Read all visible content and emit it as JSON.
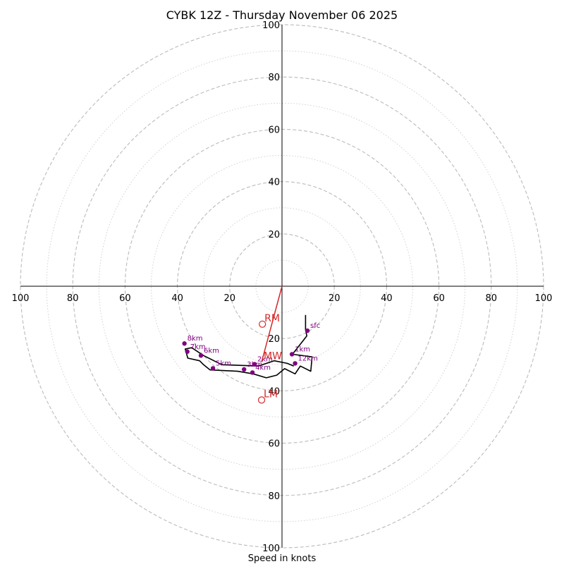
{
  "chart_data": {
    "type": "hodograph",
    "title": "CYBK 12Z - Thursday November 06 2025",
    "xlabel": "Speed in knots",
    "units": "knots",
    "max_speed": 100,
    "ring_labels": [
      "20",
      "40",
      "60",
      "80",
      "100"
    ],
    "grid": true,
    "colors": {
      "ring_major": "#bbbbbb",
      "ring_minor": "#cccccc",
      "axis": "#000000",
      "profile": "#000000",
      "height_marker": "#800080",
      "storm_motion": "#d62728"
    },
    "profile": {
      "u": [
        9,
        9,
        9.5,
        4,
        11.5,
        11,
        7,
        5,
        1,
        -2,
        -6,
        -11,
        -17,
        -27.5,
        -30,
        -31.5,
        -36,
        -37,
        -34.5,
        -30,
        -23,
        -9,
        -3,
        2,
        4.5
      ],
      "v": [
        -11,
        -16.5,
        -19,
        -26,
        -27,
        -32.5,
        -30.5,
        -33.5,
        -31.5,
        -34,
        -35,
        -33.5,
        -32.5,
        -32,
        -30,
        -28.5,
        -27.5,
        -24,
        -23.5,
        -26.5,
        -30,
        -30.5,
        -28.5,
        -29.5,
        -30.5
      ]
    },
    "height_markers": [
      {
        "label": "sfc",
        "u": 9.7,
        "v": -17.0
      },
      {
        "label": "1km",
        "u": 3.8,
        "v": -26.0
      },
      {
        "label": "2km",
        "u": -10.5,
        "v": -29.8
      },
      {
        "label": "3km",
        "u": -14.5,
        "v": -31.8
      },
      {
        "label": "4km",
        "u": -11.3,
        "v": -33.0
      },
      {
        "label": "5km",
        "u": -26.4,
        "v": -31.4
      },
      {
        "label": "6km",
        "u": -31.0,
        "v": -26.5
      },
      {
        "label": "7km",
        "u": -36.2,
        "v": -25.0
      },
      {
        "label": "8km",
        "u": -37.3,
        "v": -21.9
      },
      {
        "label": "12km",
        "u": 5.0,
        "v": -29.5
      }
    ],
    "storm_motion": [
      {
        "label": "RM",
        "u": -7.5,
        "v": -14.5
      },
      {
        "label": "LM",
        "u": -7.8,
        "v": -43.5
      },
      {
        "label": "MW",
        "u": -7.8,
        "v": -29.0
      }
    ],
    "storm_motion_vector": {
      "u": -7.8,
      "v": -29.0
    }
  }
}
